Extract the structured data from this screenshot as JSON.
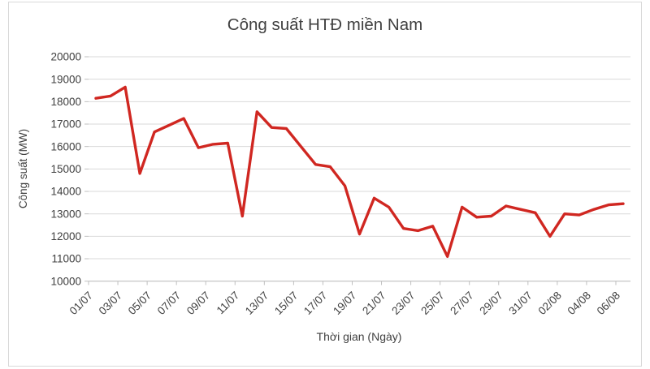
{
  "chart_data": {
    "type": "line",
    "title": "Công suất HTĐ miền Nam",
    "xlabel": "Thời gian (Ngày)",
    "ylabel": "Công suất (MW)",
    "ylim": [
      10000,
      20000
    ],
    "y_tick_step": 1000,
    "y_tick_labels": [
      "20000",
      "19000",
      "18000",
      "17000",
      "16000",
      "15000",
      "14000",
      "13000",
      "12000",
      "11000",
      "10000"
    ],
    "x_label_interval": 2,
    "grid": true,
    "legend_position": "none",
    "categories": [
      "01/07",
      "02/07",
      "03/07",
      "04/07",
      "05/07",
      "06/07",
      "07/07",
      "08/07",
      "09/07",
      "10/07",
      "11/07",
      "12/07",
      "13/07",
      "14/07",
      "15/07",
      "16/07",
      "17/07",
      "18/07",
      "19/07",
      "20/07",
      "21/07",
      "22/07",
      "23/07",
      "24/07",
      "25/07",
      "26/07",
      "27/07",
      "28/07",
      "29/07",
      "30/07",
      "31/07",
      "01/08",
      "02/08",
      "03/08",
      "04/08",
      "05/08",
      "06/08"
    ],
    "series": [
      {
        "name": "Công suất HTĐ miền Nam",
        "color": "#d02721",
        "values": [
          18150,
          18250,
          18650,
          14800,
          16650,
          16950,
          17250,
          15950,
          16100,
          16150,
          12900,
          17550,
          16850,
          16800,
          16000,
          15200,
          15100,
          14250,
          12100,
          13700,
          13300,
          12350,
          12250,
          12450,
          11100,
          13300,
          12850,
          12900,
          13350,
          13200,
          13050,
          12000,
          13000,
          12950,
          13200,
          13400,
          13450
        ]
      }
    ],
    "colors": {
      "gridline": "#d9d9d9",
      "axis_line": "#bfbfbf",
      "tick_label": "#404040",
      "title": "#3f3f3f"
    }
  }
}
